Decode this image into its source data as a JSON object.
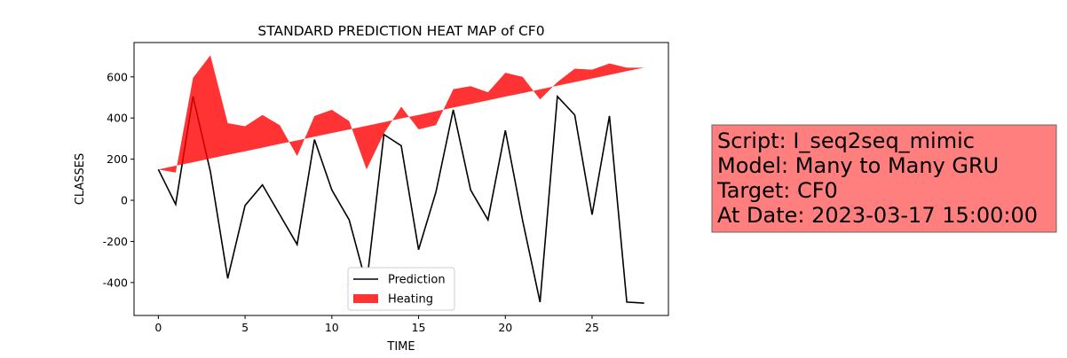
{
  "chart_data": {
    "type": "line",
    "title": "STANDARD PREDICTION HEAT MAP of CF0",
    "xlabel": "TIME",
    "ylabel": "CLASSES",
    "x": [
      0,
      1,
      2,
      3,
      4,
      5,
      6,
      7,
      8,
      9,
      10,
      11,
      12,
      13,
      14,
      15,
      16,
      17,
      18,
      19,
      20,
      21,
      22,
      23,
      24,
      25,
      26,
      27,
      28
    ],
    "series": [
      {
        "name": "Prediction",
        "color": "#000000",
        "values": [
          150,
          -20,
          505,
          140,
          -380,
          -25,
          75,
          -70,
          -215,
          295,
          50,
          -95,
          -410,
          320,
          265,
          -240,
          40,
          440,
          50,
          -95,
          340,
          -100,
          -495,
          505,
          415,
          -70,
          410,
          -495,
          -500
        ]
      },
      {
        "name": "Heating",
        "color": "#ff0000",
        "kind": "fill",
        "values": [
          150,
          135,
          595,
          705,
          375,
          360,
          415,
          365,
          215,
          410,
          440,
          385,
          150,
          325,
          455,
          345,
          365,
          540,
          555,
          525,
          620,
          600,
          490,
          575,
          640,
          635,
          665,
          645,
          645
        ],
        "lower": [
          150,
          168,
          185,
          203,
          221,
          238,
          256,
          274,
          291,
          309,
          327,
          344,
          362,
          380,
          398,
          415,
          433,
          451,
          468,
          486,
          504,
          521,
          539,
          557,
          575,
          592,
          610,
          628,
          645
        ]
      }
    ],
    "xlim": [
      -1.4,
      29.4
    ],
    "xticks": [
      0,
      5,
      10,
      15,
      20,
      25
    ],
    "ylim": [
      -560,
      767
    ],
    "yticks": [
      -400,
      -200,
      0,
      200,
      400,
      600
    ],
    "legend": "lower center",
    "annotation": [
      "Script: I_seq2seq_mimic",
      "Model: Many to Many GRU",
      "Target: CF0",
      "At Date: 2023-03-17 15:00:00"
    ]
  }
}
